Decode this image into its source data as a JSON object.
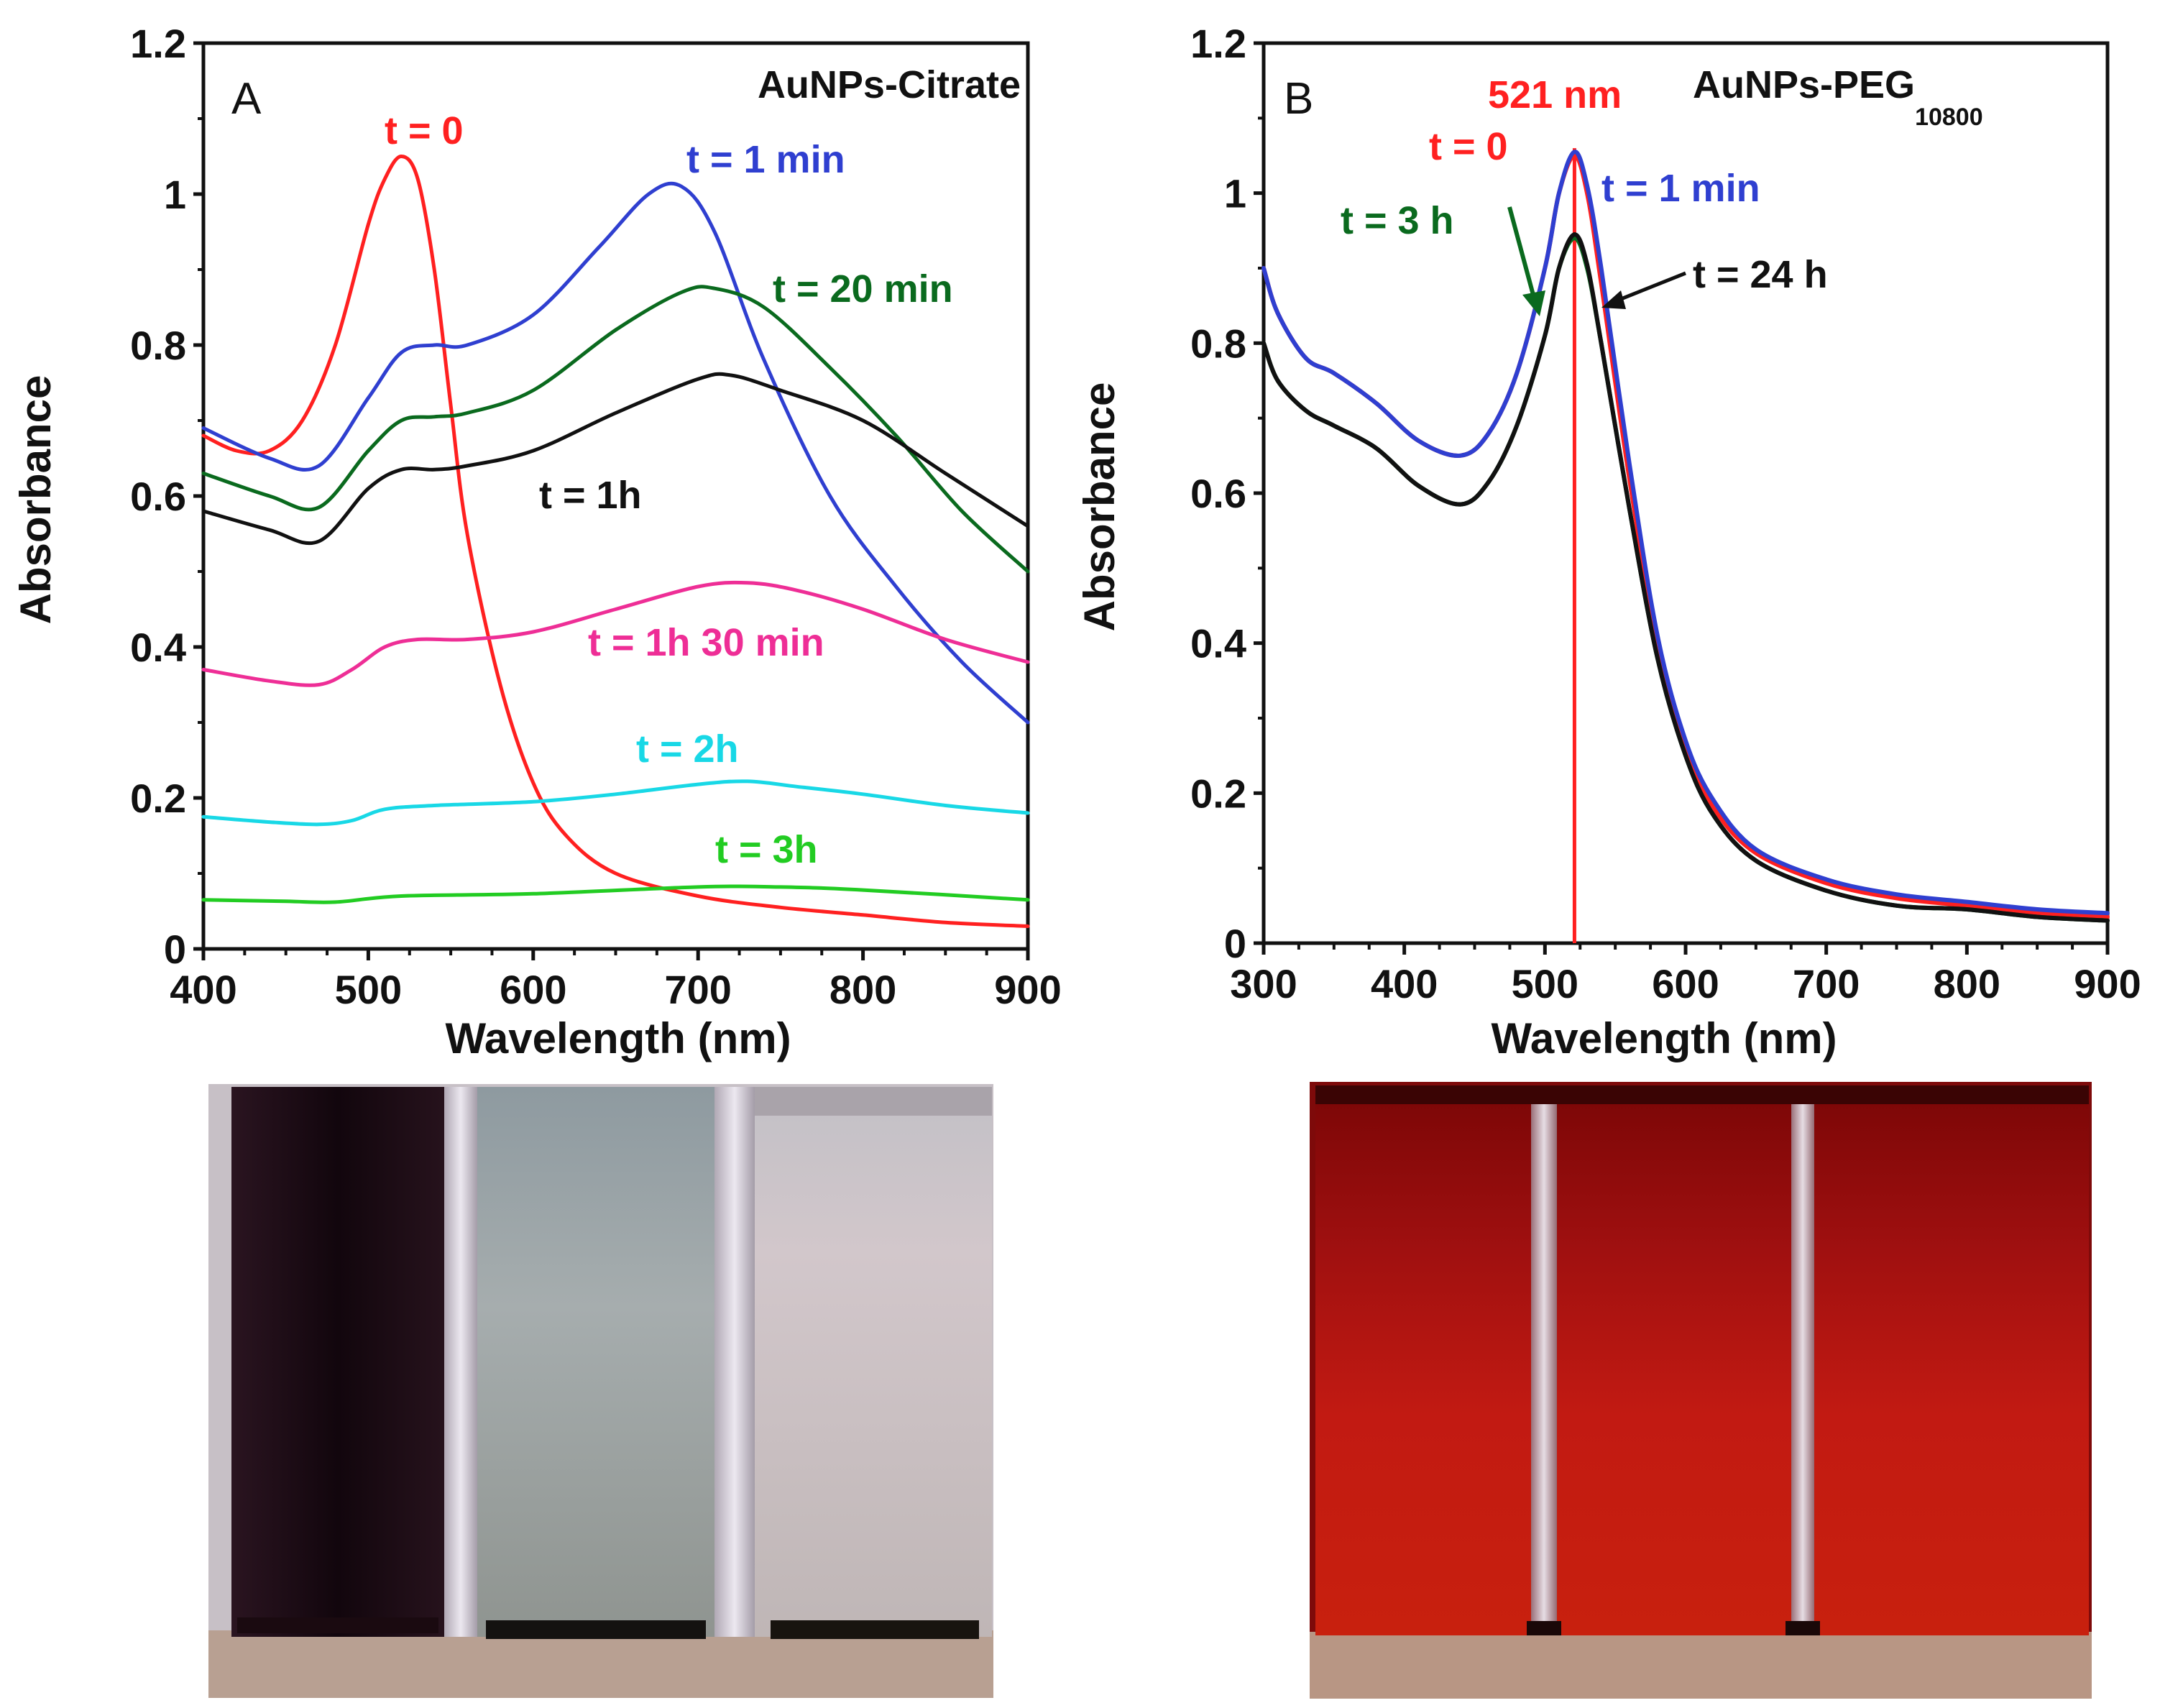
{
  "chart_data": [
    {
      "type": "line",
      "panel": "A",
      "title": "AuNPs-Citrate",
      "xlabel": "Wavelength (nm)",
      "ylabel": "Absorbance",
      "xlim": [
        400,
        900
      ],
      "ylim": [
        0,
        1.2
      ],
      "xticks": [
        400,
        500,
        600,
        700,
        800,
        900
      ],
      "yticks": [
        0,
        0.2,
        0.4,
        0.6,
        0.8,
        1,
        1.2
      ],
      "ytick_labels": [
        "0",
        "0.2",
        "0.4",
        "0.6",
        "0.8",
        "1",
        "1.2"
      ],
      "series": [
        {
          "name": "t = 0",
          "color": "#ff2020",
          "x": [
            400,
            420,
            440,
            460,
            480,
            500,
            510,
            520,
            530,
            540,
            550,
            560,
            580,
            600,
            620,
            650,
            700,
            750,
            800,
            850,
            900
          ],
          "y": [
            0.68,
            0.66,
            0.66,
            0.7,
            0.8,
            0.96,
            1.02,
            1.05,
            1.02,
            0.9,
            0.72,
            0.55,
            0.35,
            0.22,
            0.15,
            0.1,
            0.07,
            0.055,
            0.045,
            0.035,
            0.03
          ]
        },
        {
          "name": "t = 1 min",
          "color": "#2f3fd0",
          "x": [
            400,
            440,
            470,
            500,
            520,
            540,
            560,
            600,
            640,
            670,
            690,
            710,
            740,
            780,
            820,
            860,
            900
          ],
          "y": [
            0.69,
            0.65,
            0.64,
            0.73,
            0.79,
            0.8,
            0.8,
            0.84,
            0.93,
            1.0,
            1.01,
            0.95,
            0.78,
            0.6,
            0.48,
            0.38,
            0.3
          ]
        },
        {
          "name": "t = 20 min",
          "color": "#0a6a1e",
          "x": [
            400,
            440,
            470,
            500,
            520,
            540,
            560,
            600,
            650,
            690,
            710,
            740,
            780,
            820,
            860,
            900
          ],
          "y": [
            0.63,
            0.6,
            0.585,
            0.66,
            0.7,
            0.705,
            0.71,
            0.74,
            0.82,
            0.87,
            0.875,
            0.85,
            0.77,
            0.68,
            0.58,
            0.5
          ]
        },
        {
          "name": "t = 1h",
          "color": "#111111",
          "x": [
            400,
            440,
            470,
            500,
            520,
            540,
            560,
            600,
            650,
            700,
            720,
            750,
            800,
            850,
            900
          ],
          "y": [
            0.58,
            0.555,
            0.54,
            0.61,
            0.635,
            0.635,
            0.64,
            0.66,
            0.71,
            0.755,
            0.76,
            0.74,
            0.7,
            0.63,
            0.56
          ]
        },
        {
          "name": "t = 1h 30 min",
          "color": "#ee2e96",
          "x": [
            400,
            440,
            470,
            490,
            510,
            530,
            560,
            600,
            650,
            700,
            730,
            760,
            800,
            850,
            900
          ],
          "y": [
            0.37,
            0.355,
            0.35,
            0.37,
            0.4,
            0.41,
            0.41,
            0.42,
            0.45,
            0.48,
            0.485,
            0.475,
            0.45,
            0.41,
            0.38
          ]
        },
        {
          "name": "t = 2h",
          "color": "#18d8e6",
          "x": [
            400,
            440,
            470,
            490,
            510,
            540,
            600,
            650,
            700,
            730,
            760,
            800,
            850,
            900
          ],
          "y": [
            0.175,
            0.168,
            0.165,
            0.17,
            0.185,
            0.19,
            0.195,
            0.205,
            0.218,
            0.222,
            0.215,
            0.205,
            0.19,
            0.18
          ]
        },
        {
          "name": "t = 3h",
          "color": "#22cc22",
          "x": [
            400,
            450,
            480,
            520,
            600,
            700,
            750,
            800,
            900
          ],
          "y": [
            0.065,
            0.063,
            0.062,
            0.07,
            0.073,
            0.082,
            0.082,
            0.078,
            0.065
          ]
        }
      ],
      "annotations": [
        "t = 0",
        "t = 1 min",
        "t = 20 min",
        "t = 1h",
        "t = 1h 30 min",
        "t = 2h",
        "t = 3h"
      ]
    },
    {
      "type": "line",
      "panel": "B",
      "title": "AuNPs-PEG",
      "title_subscript": "10800",
      "xlabel": "Wavelength (nm)",
      "ylabel": "Absorbance",
      "xlim": [
        300,
        900
      ],
      "ylim": [
        0,
        1.2
      ],
      "xticks": [
        300,
        400,
        500,
        600,
        700,
        800,
        900
      ],
      "yticks": [
        0,
        0.2,
        0.4,
        0.6,
        0.8,
        1,
        1.2
      ],
      "ytick_labels": [
        "0",
        "0.2",
        "0.4",
        "0.6",
        "0.8",
        "1",
        "1.2"
      ],
      "peak_marker": {
        "x": 521,
        "label": "521 nm",
        "color": "#ff2020"
      },
      "series": [
        {
          "name": "t = 0",
          "color": "#ff2020",
          "x": [
            300,
            310,
            330,
            350,
            380,
            410,
            440,
            460,
            480,
            500,
            510,
            521,
            530,
            540,
            560,
            580,
            600,
            620,
            650,
            700,
            750,
            800,
            850,
            900
          ],
          "y": [
            0.9,
            0.84,
            0.78,
            0.76,
            0.72,
            0.67,
            0.65,
            0.68,
            0.76,
            0.9,
            1.0,
            1.05,
            1.0,
            0.88,
            0.62,
            0.4,
            0.26,
            0.18,
            0.12,
            0.08,
            0.06,
            0.05,
            0.04,
            0.035
          ]
        },
        {
          "name": "t = 1 min",
          "color": "#2f3fd0",
          "x": [
            300,
            310,
            330,
            350,
            380,
            410,
            440,
            460,
            480,
            500,
            510,
            521,
            530,
            540,
            560,
            580,
            600,
            620,
            650,
            700,
            750,
            800,
            850,
            900
          ],
          "y": [
            0.9,
            0.84,
            0.78,
            0.76,
            0.72,
            0.67,
            0.65,
            0.68,
            0.76,
            0.9,
            1.0,
            1.055,
            1.01,
            0.9,
            0.64,
            0.41,
            0.27,
            0.19,
            0.125,
            0.085,
            0.065,
            0.055,
            0.045,
            0.04
          ]
        },
        {
          "name": "t = 3 h",
          "color": "#0a6a1e",
          "x": [
            300,
            310,
            330,
            350,
            380,
            410,
            440,
            460,
            480,
            500,
            510,
            521,
            530,
            540,
            560,
            580,
            600,
            620,
            650,
            700,
            750,
            800,
            850,
            900
          ],
          "y": [
            0.8,
            0.75,
            0.71,
            0.69,
            0.66,
            0.61,
            0.585,
            0.615,
            0.69,
            0.81,
            0.9,
            0.94,
            0.9,
            0.8,
            0.58,
            0.38,
            0.25,
            0.17,
            0.11,
            0.07,
            0.05,
            0.045,
            0.035,
            0.03
          ]
        },
        {
          "name": "t = 24 h",
          "color": "#111111",
          "x": [
            300,
            310,
            330,
            350,
            380,
            410,
            440,
            460,
            480,
            500,
            510,
            521,
            530,
            540,
            560,
            580,
            600,
            620,
            650,
            700,
            750,
            800,
            850,
            900
          ],
          "y": [
            0.8,
            0.75,
            0.71,
            0.69,
            0.66,
            0.61,
            0.585,
            0.615,
            0.69,
            0.81,
            0.9,
            0.945,
            0.905,
            0.8,
            0.58,
            0.38,
            0.25,
            0.17,
            0.11,
            0.07,
            0.05,
            0.045,
            0.035,
            0.03
          ]
        }
      ],
      "annotations": [
        "521 nm",
        "t = 0",
        "t = 1 min",
        "t = 3 h",
        "t = 24 h"
      ]
    }
  ]
}
